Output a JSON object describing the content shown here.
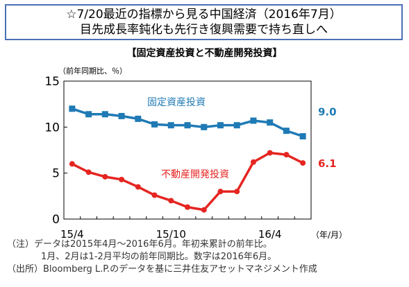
{
  "header": {
    "line1": "☆7/20最近の指標から見る中国経済（2016年7月）",
    "line2": "目先成長率鈍化も先行き復興需要で持ち直しへ"
  },
  "chart_data": {
    "type": "line",
    "title": "【固定資産投資と不動産開発投資】",
    "unit_label": "（前年同期比、％）",
    "x_unit": "（年/月）",
    "x": [
      "15/4",
      "15/5",
      "15/6",
      "15/7",
      "15/8",
      "15/9",
      "15/10",
      "15/11",
      "15/12",
      "16/1",
      "16/2",
      "16/3",
      "16/4",
      "16/5",
      "16/6"
    ],
    "x_tick_labels": [
      "15/4",
      "15/10",
      "16/4"
    ],
    "ylim": [
      0,
      15
    ],
    "y_ticks": [
      0,
      5,
      10,
      15
    ],
    "series": [
      {
        "name": "固定資産投資",
        "color": "#1f7ab5",
        "marker": "square",
        "values": [
          12.0,
          11.4,
          11.4,
          11.2,
          10.9,
          10.3,
          10.2,
          10.2,
          10.0,
          10.2,
          10.2,
          10.7,
          10.5,
          9.6,
          9.0
        ],
        "end_label": "9.0"
      },
      {
        "name": "不動産開発投資",
        "color": "#e52521",
        "marker": "circle",
        "values": [
          6.0,
          5.1,
          4.6,
          4.3,
          3.5,
          2.6,
          2.0,
          1.3,
          1.0,
          3.0,
          3.0,
          6.2,
          7.2,
          7.0,
          6.1
        ],
        "end_label": "6.1"
      }
    ],
    "grid": false
  },
  "notes": [
    "（注）データは2015年4月～2016年6月。年初来累計の前年比。",
    "1月、2月は1-2月平均の前年同期比。数字は2016年6月。",
    "（出所）Bloomberg L.P.のデータを基に三井住友アセットマネジメント作成"
  ]
}
